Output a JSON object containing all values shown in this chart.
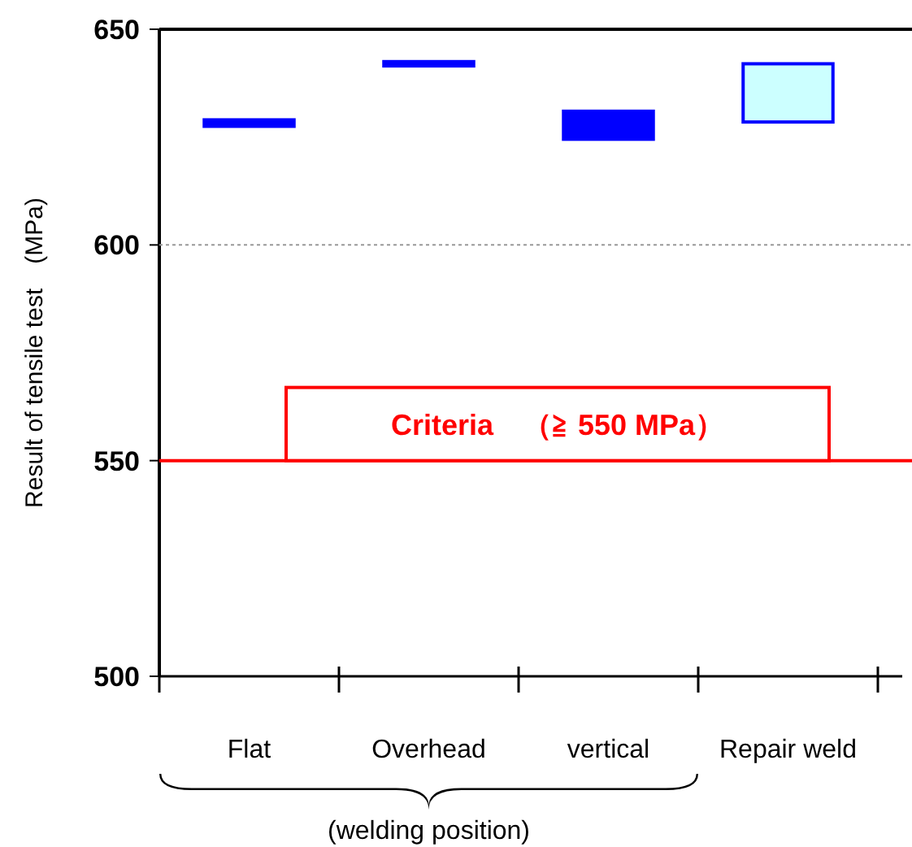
{
  "chart_data": {
    "type": "bar",
    "ylabel": "Result of tensile test　(MPa)",
    "categories": [
      "Flat",
      "Overhead",
      "vertical",
      "Repair weld"
    ],
    "base": [
      627.5,
      641.5,
      624.5,
      628.5
    ],
    "values": [
      1.5,
      1,
      6.5,
      13.5
    ],
    "colors": [
      "#0000ff",
      "#0000ff",
      "#0000ff",
      "#ccffff"
    ],
    "ylim": [
      500,
      650
    ],
    "yticks": [
      500,
      550,
      600,
      650
    ],
    "ref_lines": [
      {
        "axis": "y",
        "value": 550,
        "label": "Criteria　（≧ 550 MPa）",
        "color": "#ff0000"
      },
      {
        "axis": "y",
        "value": 600,
        "color": "#999999",
        "line_style": "dotted"
      }
    ],
    "annotations": [
      "(welding position)"
    ]
  }
}
